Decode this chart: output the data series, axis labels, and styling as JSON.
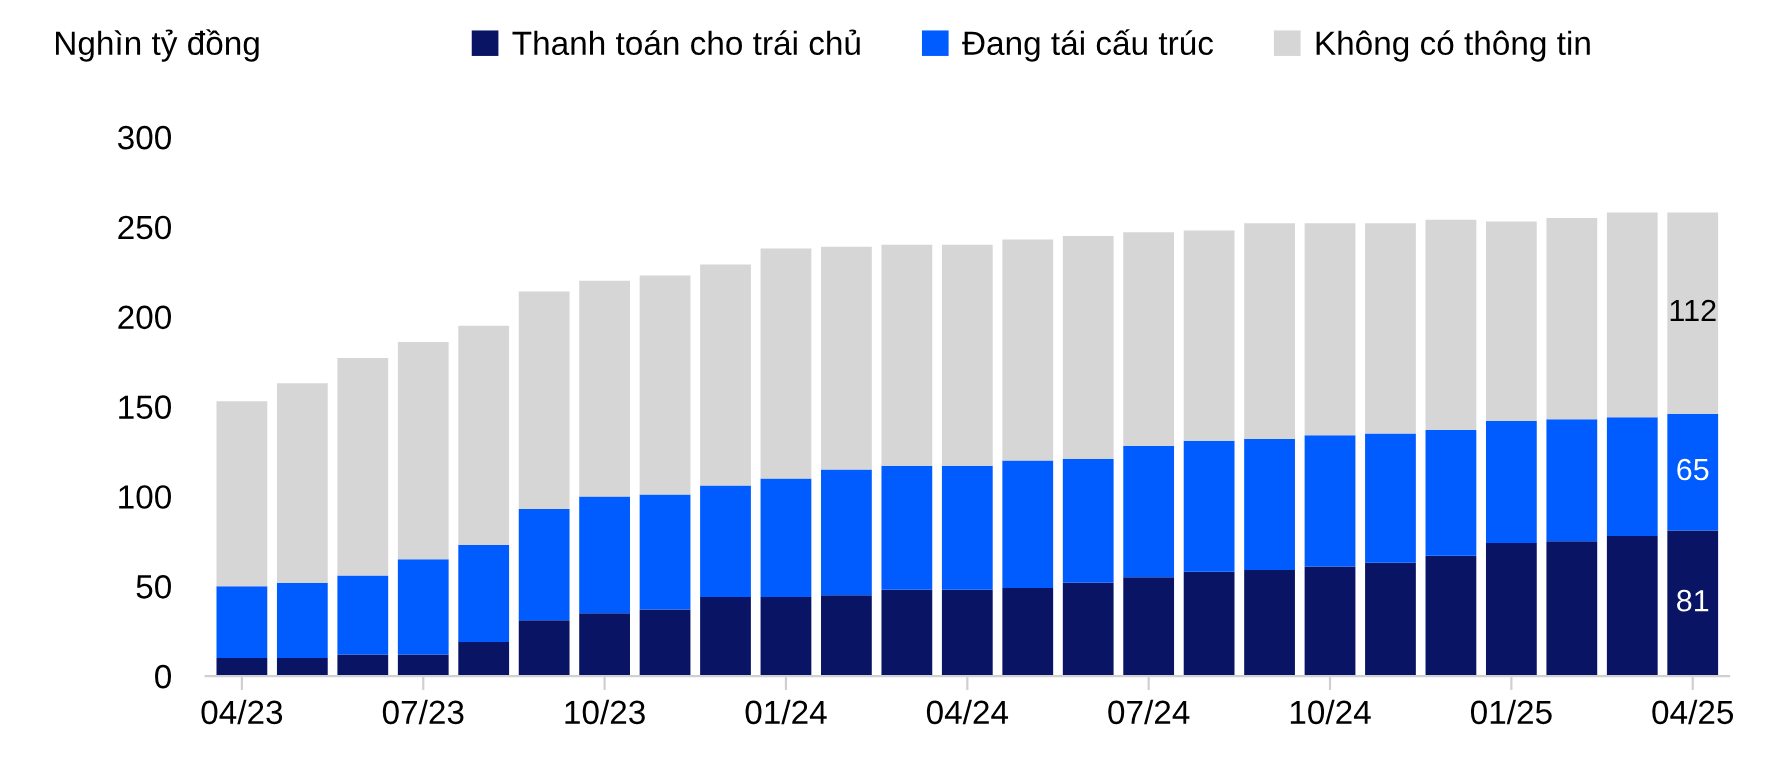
{
  "chart_data": {
    "type": "bar",
    "stacked": true,
    "ylabel": "Nghìn tỷ đồng",
    "legend": "top",
    "categories": [
      "04/23",
      null,
      null,
      "07/23",
      null,
      null,
      "10/23",
      null,
      null,
      "01/24",
      null,
      null,
      "04/24",
      null,
      null,
      "07/24",
      null,
      null,
      "10/24",
      null,
      null,
      "01/25",
      null,
      null,
      "04/25"
    ],
    "series": [
      {
        "name": "Thanh toán cho trái chủ",
        "color": "#0a1464",
        "values": [
          10,
          10,
          12,
          12,
          19,
          31,
          35,
          37,
          44,
          44,
          45,
          48,
          48,
          49,
          52,
          55,
          58,
          59,
          61,
          63,
          67,
          74,
          75,
          78,
          81
        ],
        "value_labels": [
          null,
          null,
          null,
          null,
          null,
          null,
          null,
          null,
          null,
          null,
          null,
          null,
          null,
          null,
          null,
          null,
          null,
          null,
          null,
          null,
          null,
          null,
          null,
          null,
          "81"
        ]
      },
      {
        "name": "Đang tái cấu trúc",
        "color": "#005cff",
        "values": [
          40,
          42,
          44,
          53,
          54,
          62,
          65,
          64,
          62,
          66,
          70,
          69,
          69,
          71,
          69,
          73,
          73,
          73,
          73,
          72,
          70,
          68,
          68,
          66,
          65
        ],
        "value_labels": [
          null,
          null,
          null,
          null,
          null,
          null,
          null,
          null,
          null,
          null,
          null,
          null,
          null,
          null,
          null,
          null,
          null,
          null,
          null,
          null,
          null,
          null,
          null,
          null,
          "65"
        ]
      },
      {
        "name": "Không có thông tin",
        "color": "#d6d6d6",
        "values": [
          103,
          111,
          121,
          121,
          122,
          121,
          120,
          122,
          123,
          128,
          124,
          123,
          123,
          123,
          124,
          119,
          117,
          120,
          118,
          117,
          117,
          111,
          112,
          114,
          112
        ],
        "value_labels": [
          null,
          null,
          null,
          null,
          null,
          null,
          null,
          null,
          null,
          null,
          null,
          null,
          null,
          null,
          null,
          null,
          null,
          null,
          null,
          null,
          null,
          null,
          null,
          null,
          "112"
        ]
      }
    ],
    "ylim": [
      0,
      300
    ],
    "yticks": [
      0,
      50,
      100,
      150,
      200,
      250,
      300
    ],
    "grid": false
  }
}
